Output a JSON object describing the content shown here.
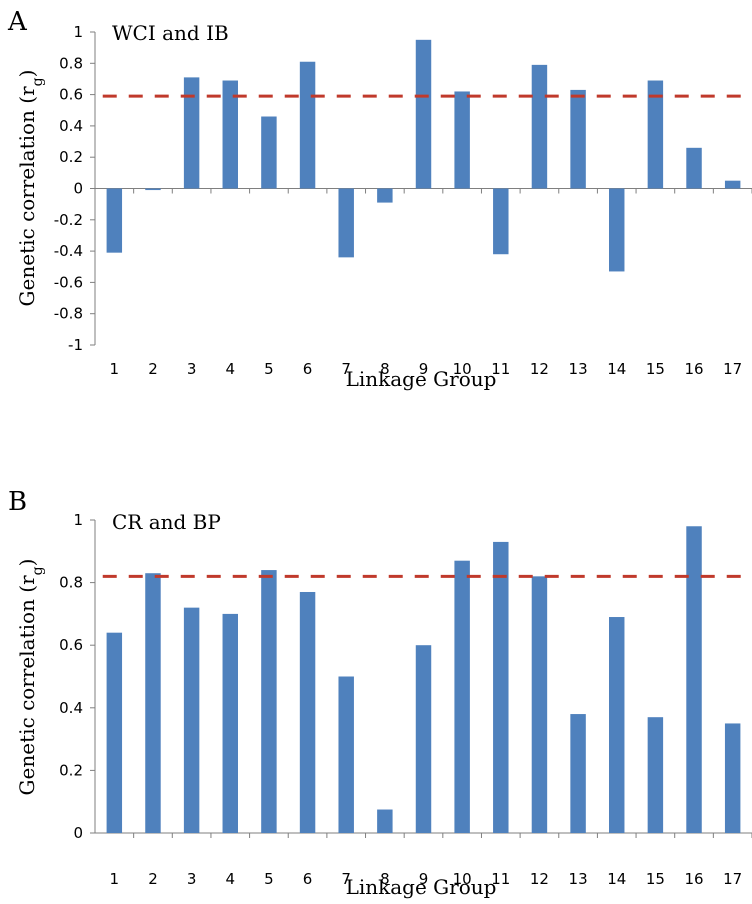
{
  "chart_data": [
    {
      "panel_label": "A",
      "type": "bar",
      "title": "WCI and IB",
      "xlabel": "Linkage Group",
      "ylabel": "Genetic correlation (r",
      "ylabel_sub": "g",
      "ylabel_close": ")",
      "ylim": [
        -1,
        1
      ],
      "yticks": [
        "1",
        "0.8",
        "0.6",
        "0.4",
        "0.2",
        "0",
        "-0.2",
        "-0.4",
        "-0.6",
        "-0.8",
        "-1"
      ],
      "yticks_values": [
        1,
        0.8,
        0.6,
        0.4,
        0.2,
        0,
        -0.2,
        -0.4,
        -0.6,
        -0.8,
        -1
      ],
      "categories": [
        "1",
        "2",
        "3",
        "4",
        "5",
        "6",
        "7",
        "8",
        "9",
        "10",
        "11",
        "12",
        "13",
        "14",
        "15",
        "16",
        "17"
      ],
      "values": [
        -0.41,
        -0.01,
        0.71,
        0.69,
        0.46,
        0.81,
        -0.44,
        -0.09,
        0.95,
        0.62,
        -0.42,
        0.79,
        0.63,
        -0.53,
        0.69,
        0.26,
        0.05
      ],
      "threshold": 0.59,
      "grid": false,
      "colors": {
        "bar": "#4f81bd",
        "threshold": "#c0392b"
      }
    },
    {
      "panel_label": "B",
      "type": "bar",
      "title": "CR and BP",
      "xlabel": "Linkage Group",
      "ylabel": "Genetic correlation (r",
      "ylabel_sub": "g",
      "ylabel_close": ")",
      "ylim": [
        0,
        1
      ],
      "yticks": [
        "1",
        "0.8",
        "0.6",
        "0.4",
        "0.2",
        "0"
      ],
      "yticks_values": [
        1,
        0.8,
        0.6,
        0.4,
        0.2,
        0
      ],
      "categories": [
        "1",
        "2",
        "3",
        "4",
        "5",
        "6",
        "7",
        "8",
        "9",
        "10",
        "11",
        "12",
        "13",
        "14",
        "15",
        "16",
        "17"
      ],
      "values": [
        0.64,
        0.83,
        0.72,
        0.7,
        0.84,
        0.77,
        0.5,
        0.075,
        0.6,
        0.87,
        0.93,
        0.82,
        0.38,
        0.69,
        0.37,
        0.98,
        0.35
      ],
      "threshold": 0.82,
      "grid": false,
      "colors": {
        "bar": "#4f81bd",
        "threshold": "#c0392b"
      }
    }
  ]
}
